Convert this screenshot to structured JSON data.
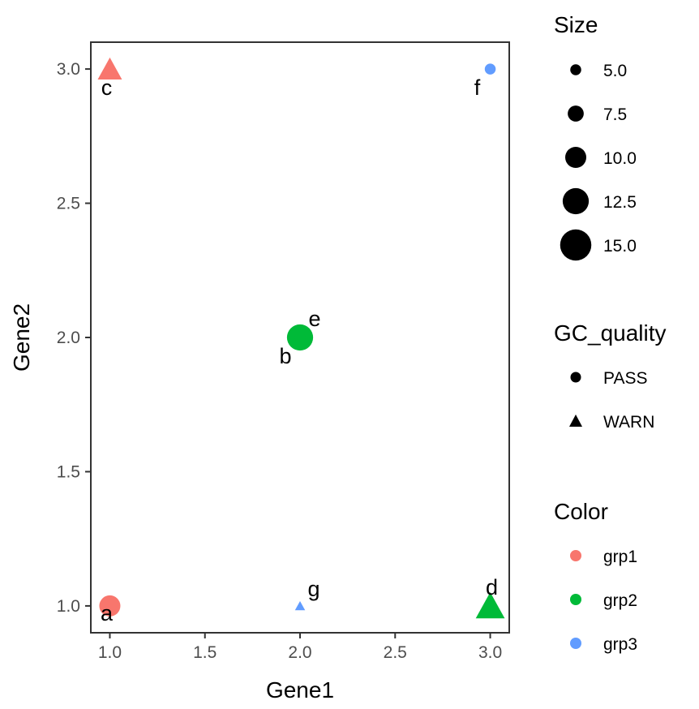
{
  "chart_data": {
    "type": "scatter",
    "xlabel": "Gene1",
    "ylabel": "Gene2",
    "xlim": [
      0.9,
      3.1
    ],
    "ylim": [
      0.9,
      3.1
    ],
    "x_ticks": [
      1.0,
      1.5,
      2.0,
      2.5,
      3.0
    ],
    "y_ticks": [
      1.0,
      1.5,
      2.0,
      2.5,
      3.0
    ],
    "x_tick_labels": [
      "1.0",
      "1.5",
      "2.0",
      "2.5",
      "3.0"
    ],
    "y_tick_labels": [
      "1.0",
      "1.5",
      "2.0",
      "2.5",
      "3.0"
    ],
    "grid": false,
    "legend_position": "right",
    "points": [
      {
        "label": "a",
        "x": 1.0,
        "y": 1.0,
        "size": 10.0,
        "gc_quality": "PASS",
        "color_group": "grp1"
      },
      {
        "label": "b",
        "x": 2.0,
        "y": 2.0,
        "size": 12.5,
        "gc_quality": "PASS",
        "color_group": "grp2"
      },
      {
        "label": "c",
        "x": 1.0,
        "y": 3.0,
        "size": 12.5,
        "gc_quality": "WARN",
        "color_group": "grp1"
      },
      {
        "label": "d",
        "x": 3.0,
        "y": 1.0,
        "size": 15.0,
        "gc_quality": "WARN",
        "color_group": "grp2"
      },
      {
        "label": "e",
        "x": 2.0,
        "y": 2.0,
        "size": 5.0,
        "gc_quality": "PASS",
        "color_group": "grp2"
      },
      {
        "label": "f",
        "x": 3.0,
        "y": 3.0,
        "size": 5.0,
        "gc_quality": "PASS",
        "color_group": "grp3"
      },
      {
        "label": "g",
        "x": 2.0,
        "y": 1.0,
        "size": 5.0,
        "gc_quality": "WARN",
        "color_group": "grp3"
      }
    ],
    "legends": {
      "size": {
        "title": "Size",
        "values": [
          5.0,
          7.5,
          10.0,
          12.5,
          15.0
        ],
        "labels": [
          "5.0",
          "7.5",
          "10.0",
          "12.5",
          "15.0"
        ]
      },
      "shape": {
        "title": "GC_quality",
        "items": [
          {
            "label": "PASS",
            "shape": "circle"
          },
          {
            "label": "WARN",
            "shape": "triangle"
          }
        ]
      },
      "color": {
        "title": "Color",
        "items": [
          {
            "label": "grp1",
            "color": "#F8766D"
          },
          {
            "label": "grp2",
            "color": "#00BA38"
          },
          {
            "label": "grp3",
            "color": "#619CFF"
          }
        ]
      }
    }
  }
}
